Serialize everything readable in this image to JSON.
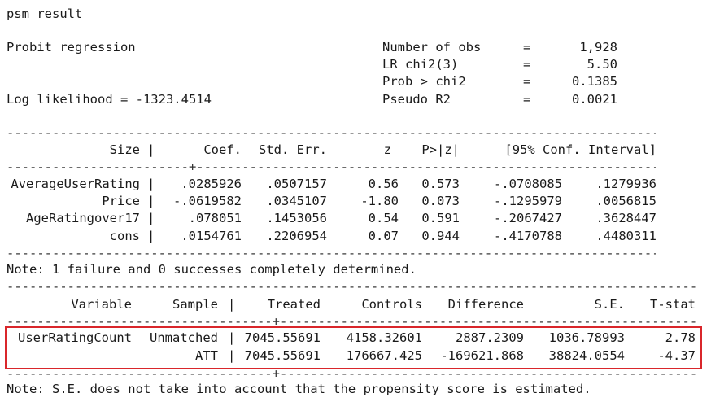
{
  "header": {
    "title": "psm result"
  },
  "probit": {
    "title": "Probit regression",
    "log_likelihood": "Log likelihood = -1323.4514",
    "stats": [
      {
        "label": "Number of obs",
        "eq": "=",
        "value": "1,928"
      },
      {
        "label": "LR chi2(3)",
        "eq": "=",
        "value": "5.50"
      },
      {
        "label": "Prob > chi2",
        "eq": "=",
        "value": "0.1385"
      },
      {
        "label": "Pseudo R2",
        "eq": "=",
        "value": "0.0021"
      }
    ],
    "columns": {
      "var": "Size",
      "coef": "Coef.",
      "se": "Std. Err.",
      "z": "z",
      "p": "P>|z|",
      "ci": "[95% Conf. Interval]"
    },
    "rows": [
      {
        "var": "AverageUserRating",
        "coef": ".0285926",
        "se": ".0507157",
        "z": "0.56",
        "p": "0.573",
        "lo": "-.0708085",
        "hi": ".1279936"
      },
      {
        "var": "Price",
        "coef": "-.0619582",
        "se": ".0345107",
        "z": "-1.80",
        "p": "0.073",
        "lo": "-.1295979",
        "hi": ".0056815"
      },
      {
        "var": "AgeRatingover17",
        "coef": ".078051",
        "se": ".1453056",
        "z": "0.54",
        "p": "0.591",
        "lo": "-.2067427",
        "hi": ".3628447"
      },
      {
        "var": "_cons",
        "coef": ".0154761",
        "se": ".2206954",
        "z": "0.07",
        "p": "0.944",
        "lo": "-.4170788",
        "hi": ".4480311"
      }
    ],
    "note": "Note: 1 failure and 0 successes completely determined."
  },
  "att": {
    "columns": {
      "variable": "Variable",
      "sample": "Sample",
      "treated": "Treated",
      "controls": "Controls",
      "difference": "Difference",
      "se": "S.E.",
      "tstat": "T-stat"
    },
    "rows": [
      {
        "variable": "UserRatingCount",
        "sample": "Unmatched",
        "treated": "7045.55691",
        "controls": "4158.32601",
        "difference": "2887.2309",
        "se": "1036.78993",
        "tstat": "2.78"
      },
      {
        "variable": "",
        "sample": "ATT",
        "treated": "7045.55691",
        "controls": "176667.425",
        "difference": "-169621.868",
        "se": "38824.0554",
        "tstat": "-4.37"
      }
    ],
    "note": "Note: S.E. does not take into account that the propensity score is estimated."
  },
  "colors": {
    "highlight_box": "#d9262b"
  }
}
